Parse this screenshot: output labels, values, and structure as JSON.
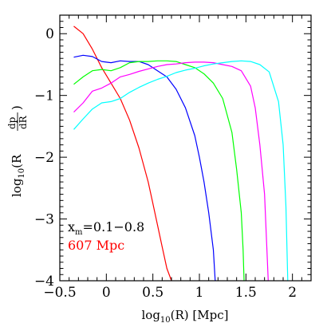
{
  "chart_data": {
    "type": "line",
    "xlabel": {
      "main": "log",
      "sub": "10",
      "rest": "(R)  [Mpc]"
    },
    "ylabel": {
      "pre": "log",
      "sub": "10",
      "mid": "(R",
      "num": "dp",
      "den": "dR",
      "post": ")"
    },
    "xlim": [
      -0.5,
      2.2
    ],
    "ylim": [
      -4,
      0.3
    ],
    "xticks": [
      -0.5,
      0,
      0.5,
      1,
      1.5,
      2
    ],
    "xtick_labels": [
      "−0.5",
      "0",
      "0.5",
      "1",
      "1.5",
      "2"
    ],
    "yticks": [
      -4,
      -3,
      -2,
      -1,
      0
    ],
    "ytick_labels": [
      "−4",
      "−3",
      "−2",
      "−1",
      "0"
    ],
    "grid": false,
    "annotations": [
      {
        "text": "x",
        "sub": "m",
        "rest": "=0.1−0.8",
        "color": "#000000"
      },
      {
        "text": "607 Mpc",
        "color": "#ff0000"
      }
    ],
    "series": [
      {
        "color": "#ff0000",
        "x": [
          -0.35,
          -0.25,
          -0.15,
          -0.05,
          0.05,
          0.15,
          0.25,
          0.35,
          0.45,
          0.5,
          0.55,
          0.6,
          0.65,
          0.7
        ],
        "y": [
          0.12,
          0.0,
          -0.25,
          -0.55,
          -0.8,
          -1.05,
          -1.4,
          -1.85,
          -2.4,
          -2.75,
          -3.1,
          -3.45,
          -3.8,
          -4.0
        ]
      },
      {
        "color": "#0000ff",
        "x": [
          -0.35,
          -0.25,
          -0.15,
          -0.05,
          0.05,
          0.15,
          0.25,
          0.35,
          0.45,
          0.55,
          0.65,
          0.75,
          0.85,
          0.95,
          1.0,
          1.05,
          1.1,
          1.15,
          1.17,
          1.18
        ],
        "y": [
          -0.38,
          -0.35,
          -0.37,
          -0.45,
          -0.47,
          -0.44,
          -0.45,
          -0.45,
          -0.5,
          -0.6,
          -0.7,
          -0.9,
          -1.2,
          -1.65,
          -2.0,
          -2.4,
          -2.9,
          -3.5,
          -4.0,
          -4.0
        ]
      },
      {
        "color": "#00ff00",
        "x": [
          -0.35,
          -0.25,
          -0.15,
          -0.05,
          0.05,
          0.15,
          0.25,
          0.35,
          0.45,
          0.55,
          0.65,
          0.75,
          0.85,
          0.95,
          1.05,
          1.15,
          1.25,
          1.35,
          1.4,
          1.45,
          1.47,
          1.48
        ],
        "y": [
          -0.82,
          -0.7,
          -0.6,
          -0.58,
          -0.6,
          -0.55,
          -0.47,
          -0.45,
          -0.45,
          -0.44,
          -0.44,
          -0.45,
          -0.5,
          -0.55,
          -0.65,
          -0.8,
          -1.05,
          -1.6,
          -2.2,
          -2.9,
          -3.5,
          -4.0
        ]
      },
      {
        "color": "#ff00ff",
        "x": [
          -0.35,
          -0.25,
          -0.15,
          -0.05,
          0.05,
          0.15,
          0.25,
          0.35,
          0.45,
          0.55,
          0.65,
          0.75,
          0.85,
          0.95,
          1.05,
          1.15,
          1.25,
          1.35,
          1.45,
          1.55,
          1.6,
          1.65,
          1.7,
          1.72,
          1.74
        ],
        "y": [
          -1.27,
          -1.12,
          -0.93,
          -0.88,
          -0.8,
          -0.7,
          -0.66,
          -0.61,
          -0.57,
          -0.53,
          -0.5,
          -0.49,
          -0.47,
          -0.46,
          -0.46,
          -0.47,
          -0.5,
          -0.53,
          -0.6,
          -0.85,
          -1.2,
          -1.8,
          -2.6,
          -3.3,
          -4.0
        ]
      },
      {
        "color": "#00ffff",
        "x": [
          -0.35,
          -0.25,
          -0.15,
          -0.05,
          0.05,
          0.15,
          0.25,
          0.35,
          0.45,
          0.55,
          0.65,
          0.75,
          0.85,
          0.95,
          1.05,
          1.15,
          1.25,
          1.35,
          1.45,
          1.55,
          1.65,
          1.75,
          1.85,
          1.9,
          1.93,
          1.95
        ],
        "y": [
          -1.55,
          -1.38,
          -1.22,
          -1.12,
          -1.1,
          -1.05,
          -0.95,
          -0.87,
          -0.8,
          -0.74,
          -0.69,
          -0.63,
          -0.59,
          -0.56,
          -0.52,
          -0.49,
          -0.47,
          -0.45,
          -0.44,
          -0.45,
          -0.5,
          -0.62,
          -1.1,
          -1.8,
          -2.8,
          -4.0
        ]
      }
    ]
  }
}
